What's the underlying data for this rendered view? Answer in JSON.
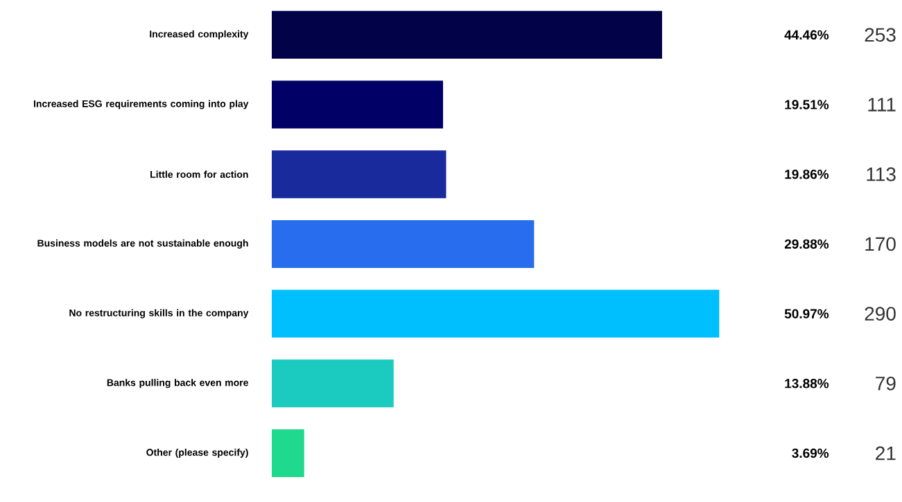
{
  "chart_data": {
    "type": "bar",
    "orientation": "horizontal",
    "categories": [
      "Increased complexity",
      "Increased ESG requirements coming into play",
      "Little room for action",
      "Business models are not sustainable enough",
      "No restructuring skills in the company",
      "Banks pulling back even more",
      "Other (please specify)"
    ],
    "values": [
      44.46,
      19.51,
      19.86,
      29.88,
      50.97,
      13.88,
      3.69
    ],
    "colors": [
      "#020249",
      "#010066",
      "#182a9c",
      "#286ded",
      "#00bfff",
      "#1bcbc0",
      "#1ed98e"
    ],
    "value_labels": [
      "44.46%",
      "19.51%",
      "19.86%",
      "29.88%",
      "50.97%",
      "13.88%",
      "3.69%"
    ],
    "annotations": [
      "253",
      "111",
      "113",
      "170",
      "290",
      "79",
      "21"
    ]
  }
}
